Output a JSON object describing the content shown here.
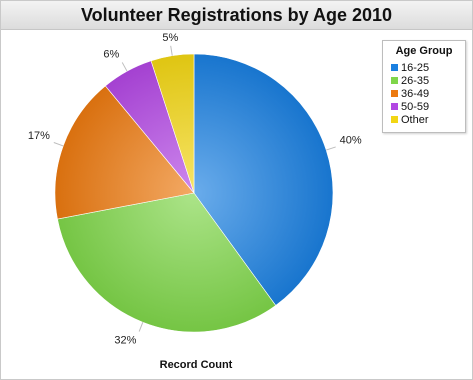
{
  "chart_data": {
    "type": "pie",
    "title": "Volunteer Registrations by Age 2010",
    "xlabel": "Record Count",
    "legend": {
      "title": "Age Group",
      "position": "top-right"
    },
    "categories": [
      "16-25",
      "26-35",
      "36-49",
      "50-59",
      "Other"
    ],
    "values": [
      40,
      32,
      17,
      6,
      5
    ],
    "labels": [
      "40%",
      "32%",
      "17%",
      "6%",
      "5%"
    ],
    "colors": [
      "#1a7fe0",
      "#7fd64a",
      "#ec7a10",
      "#b247e3",
      "#f2d614"
    ]
  }
}
